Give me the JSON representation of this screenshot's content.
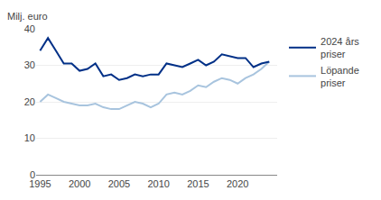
{
  "chart_data": {
    "type": "line",
    "ylabel": "Milj. euro",
    "x": [
      1995,
      1996,
      1997,
      1998,
      1999,
      2000,
      2001,
      2002,
      2003,
      2004,
      2005,
      2006,
      2007,
      2008,
      2009,
      2010,
      2011,
      2012,
      2013,
      2014,
      2015,
      2016,
      2017,
      2018,
      2019,
      2020,
      2021,
      2022,
      2023,
      2024
    ],
    "series": [
      {
        "name": "2024 års\npriser",
        "color": "#003087",
        "values": [
          34,
          37.5,
          34,
          30.5,
          30.5,
          28.5,
          29,
          30.5,
          27,
          27.5,
          26,
          26.5,
          27.5,
          27,
          27.5,
          27.5,
          30.5,
          30,
          29.5,
          30.5,
          31.5,
          30,
          31,
          33,
          32.5,
          32,
          32,
          29.5,
          30.5,
          31
        ]
      },
      {
        "name": "Löpande\npriser",
        "color": "#a8c4de",
        "values": [
          20,
          22,
          21,
          20,
          19.5,
          19,
          19,
          19.5,
          18.5,
          18,
          18,
          19,
          20,
          19.5,
          18.5,
          19.5,
          22,
          22.5,
          22,
          23,
          24.5,
          24,
          25.5,
          26.5,
          26,
          25,
          26.5,
          27.5,
          29,
          31
        ]
      }
    ],
    "xlim": [
      1994.5,
      2025.0
    ],
    "xticks": [
      1995,
      2000,
      2005,
      2010,
      2015,
      2020
    ],
    "ylim": [
      0,
      40
    ],
    "yticks": [
      0,
      10,
      20,
      30,
      40
    ],
    "grid": "y",
    "legend": "right"
  }
}
